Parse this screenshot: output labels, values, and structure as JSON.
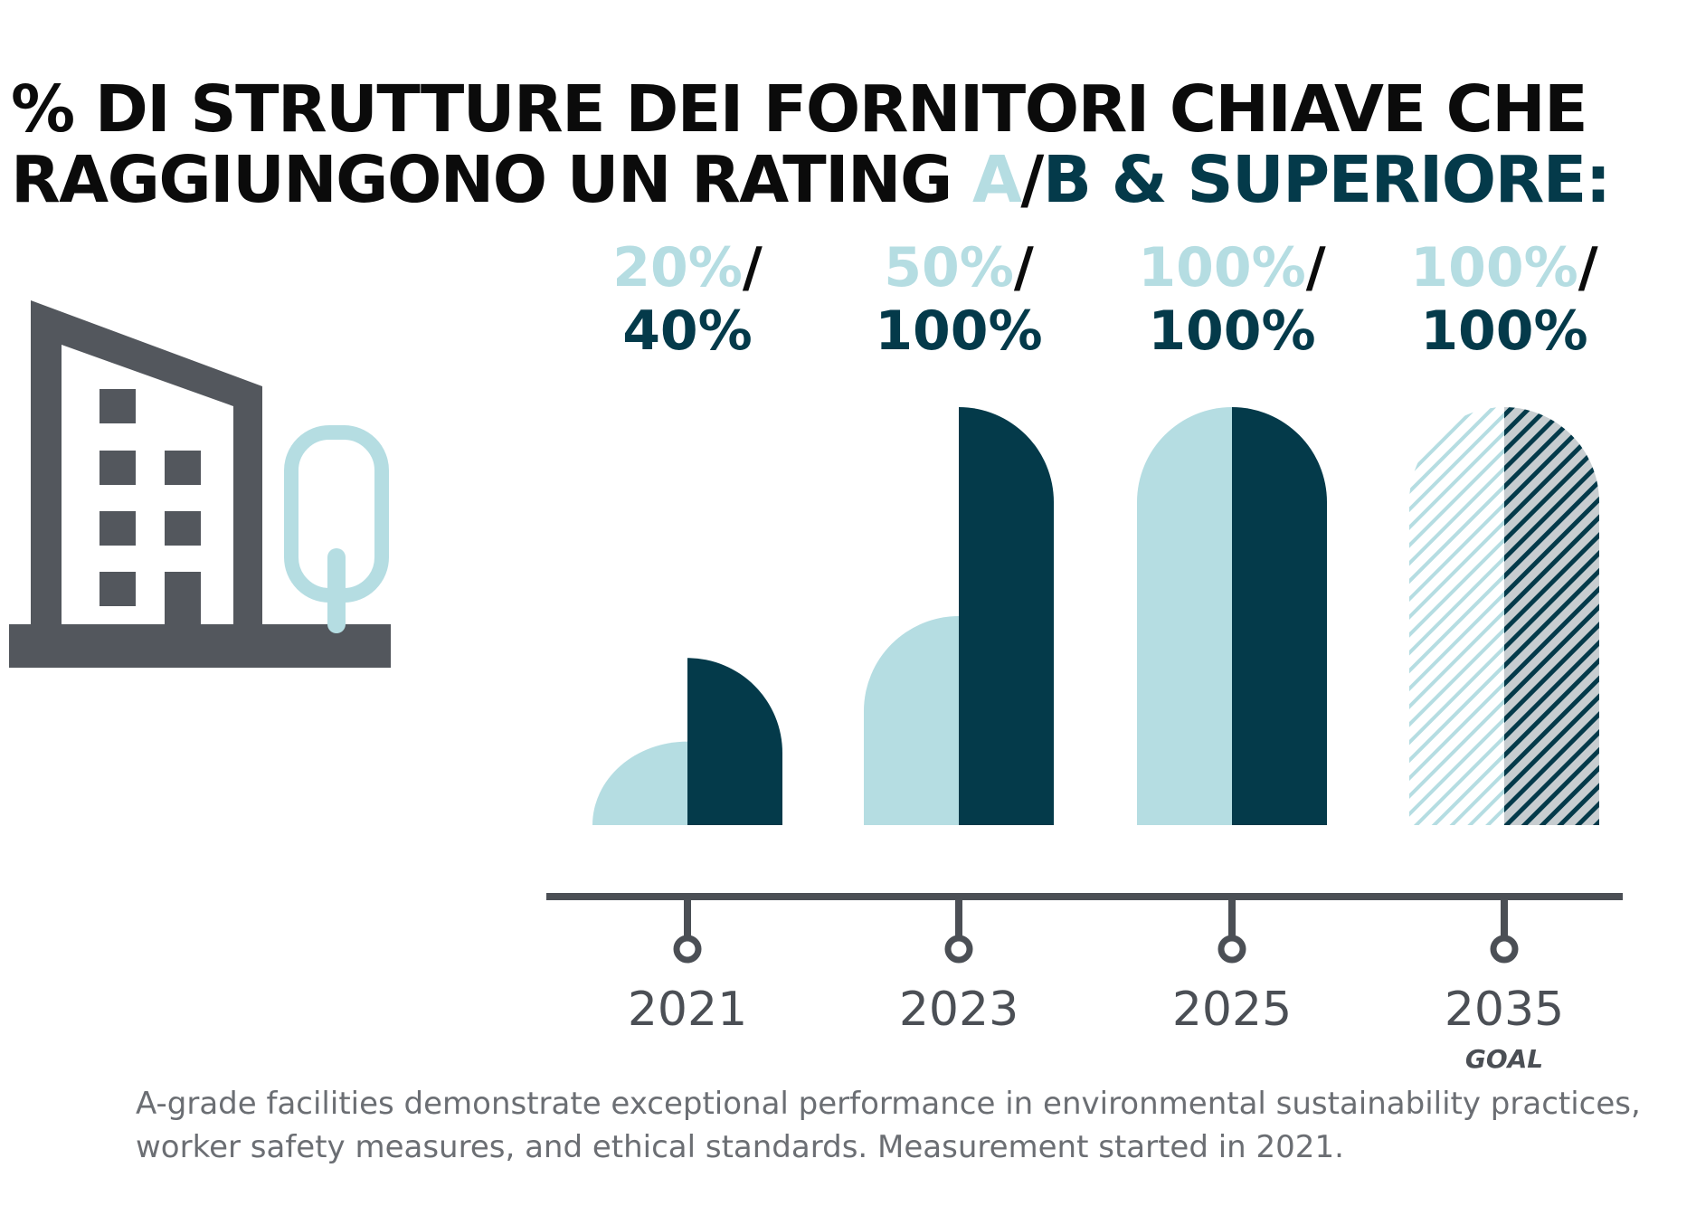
{
  "title": {
    "line1": "% DI STRUTTURE DEI FORNITORI CHIAVE CHE",
    "line2_prefix": "RAGGIUNGONO UN RATING ",
    "line2_a": "A",
    "line2_sep": "/",
    "line2_b": "B & SUPERIORE:"
  },
  "colors": {
    "a_grade": "#b5dde2",
    "b_grade": "#043a4a",
    "icon_gray": "#53575d",
    "axis": "#4b4f55"
  },
  "icons": {
    "building": "building-icon",
    "tree": "tree-icon"
  },
  "chart_data": {
    "type": "bar",
    "categories": [
      "2021",
      "2023",
      "2025",
      "2035"
    ],
    "series": [
      {
        "name": "A",
        "values": [
          20,
          50,
          100,
          100
        ]
      },
      {
        "name": "B & SUPERIORE",
        "values": [
          40,
          100,
          100,
          100
        ]
      }
    ],
    "labels_a": [
      "20%",
      "50%",
      "100%",
      "100%"
    ],
    "labels_b": [
      "40%",
      "100%",
      "100%",
      "100%"
    ],
    "separator": "/",
    "goal_category": "2035",
    "goal_label": "GOAL",
    "ylim": [
      0,
      100
    ]
  },
  "footnote": "A-grade facilities demonstrate exceptional performance in environmental sustainability practices, worker safety measures, and ethical standards. Measurement started in 2021."
}
